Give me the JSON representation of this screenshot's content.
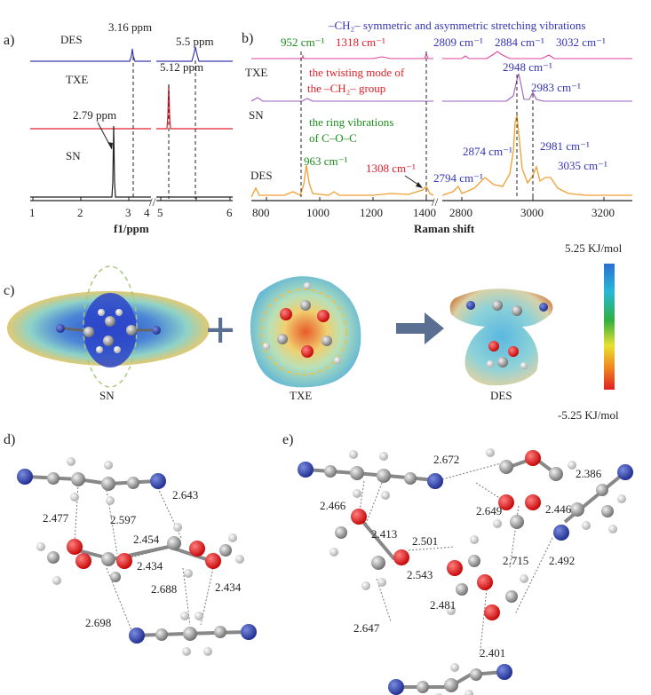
{
  "colors": {
    "des": "#3b3bb0",
    "txe": "#e0202a",
    "sn": "#222222",
    "raman_des": "#f0a030",
    "raman_sn": "#9b5fc0",
    "raman_txe": "#e040a0",
    "annot_green": "#1c8c1c",
    "annot_red": "#e0202a",
    "annot_blue": "#3434b8",
    "arrow": "#5b6f92"
  },
  "panel_a": {
    "letter": "a)",
    "labels": {
      "des": "DES",
      "txe": "TXE",
      "sn": "SN"
    },
    "peaks": {
      "des_1": "3.16 ppm",
      "des_2": "5.5 ppm",
      "txe": "5.12 ppm",
      "sn": "2.79 ppm"
    },
    "xticks": [
      "1",
      "2",
      "3",
      "4",
      "5",
      "6"
    ],
    "xlabel": "f1/ppm",
    "break_mark": "//"
  },
  "panel_b": {
    "letter": "b)",
    "labels": {
      "txe": "TXE",
      "sn": "SN",
      "des": "DES"
    },
    "peaks": {
      "p952": "952 cm⁻¹",
      "p1318": "1318 cm⁻¹",
      "p2809": "2809 cm⁻¹",
      "p2884": "2884 cm⁻¹",
      "p3032": "3032 cm⁻¹",
      "p2948": "2948 cm⁻¹",
      "p2983": "2983 cm⁻¹",
      "p963": "963 cm⁻¹",
      "p1308": "1308 cm⁻¹",
      "p2794": "2794 cm⁻¹",
      "p2874": "2874 cm⁻¹",
      "p2981": "2981 cm⁻¹",
      "p3035": "3035 cm⁻¹"
    },
    "annotations": {
      "stretch": "–CH₂– symmetric and asymmetric stretching vibrations",
      "twist_1": "the twisting mode of",
      "twist_2": "the –CH₂– group",
      "ring_1": "the ring vibrations",
      "ring_2": "of C–O–C"
    },
    "xticks": [
      "800",
      "1000",
      "1200",
      "1400",
      "2800",
      "3000",
      "3200"
    ],
    "xlabel": "Raman shift",
    "break_mark": "//"
  },
  "panel_c": {
    "letter": "c)",
    "molecules": {
      "sn": "SN",
      "txe": "TXE",
      "des": "DES"
    },
    "plus": "+",
    "scale_max": "5.25 KJ/mol",
    "scale_min": "-5.25 KJ/mol"
  },
  "panel_d": {
    "letter": "d)",
    "distances": [
      "2.643",
      "2.477",
      "2.597",
      "2.454",
      "2.434",
      "2.688",
      "2.434",
      "2.698"
    ]
  },
  "panel_e": {
    "letter": "e)",
    "distances": [
      "2.672",
      "2.386",
      "2.466",
      "2.413",
      "2.649",
      "2.446",
      "2.501",
      "2.543",
      "2.715",
      "2.492",
      "2.481",
      "2.647",
      "2.401"
    ]
  }
}
